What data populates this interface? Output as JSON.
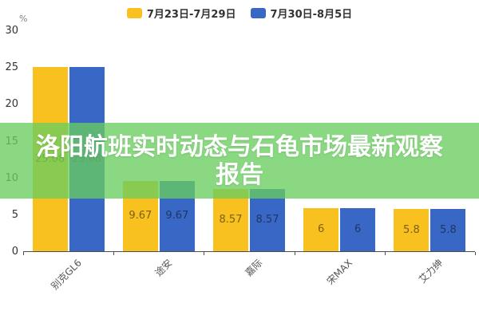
{
  "overlay": {
    "title_line1": "洛阳航班实时动态与石龟市场最新观察",
    "title_line2": "报告",
    "background": "rgba(105,205,95,0.78)",
    "text_color": "#FFFFFF"
  },
  "chart_data": {
    "type": "bar",
    "title": "",
    "categories": [
      "别克GL6",
      "途安",
      "嘉际",
      "宋MAX",
      "艾力绅"
    ],
    "series": [
      {
        "name": "7月23日-7月29日",
        "color": "#F8C120",
        "values": [
          25.08,
          9.67,
          8.57,
          6,
          5.8
        ]
      },
      {
        "name": "7月30日-8月5日",
        "color": "#3867C6",
        "values": [
          25.08,
          9.67,
          8.57,
          6,
          5.8
        ]
      }
    ],
    "value_labels": [
      "25.08",
      "9.67",
      "8.57",
      "6",
      "5.8"
    ],
    "xlabel": "",
    "ylabel": "%",
    "yticks": [
      0,
      5,
      10,
      15,
      20,
      25,
      30
    ],
    "ylim": [
      0,
      30
    ],
    "grid": false,
    "legend_position": "top",
    "value_label_position": "inside-center",
    "axis_color": "#4d4d4d"
  }
}
